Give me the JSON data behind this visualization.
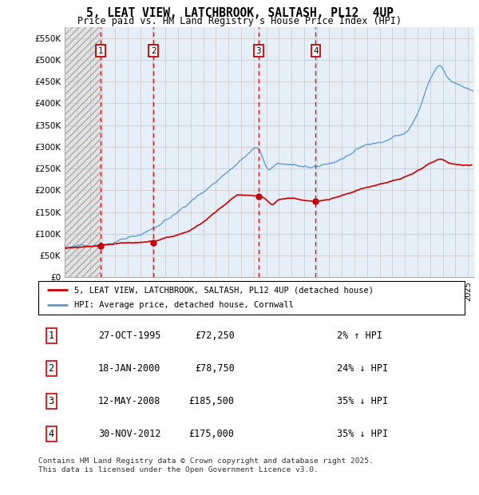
{
  "title": "5, LEAT VIEW, LATCHBROOK, SALTASH, PL12  4UP",
  "subtitle": "Price paid vs. HM Land Registry's House Price Index (HPI)",
  "ylabel_ticks": [
    "£0",
    "£50K",
    "£100K",
    "£150K",
    "£200K",
    "£250K",
    "£300K",
    "£350K",
    "£400K",
    "£450K",
    "£500K",
    "£550K"
  ],
  "ytick_values": [
    0,
    50000,
    100000,
    150000,
    200000,
    250000,
    300000,
    350000,
    400000,
    450000,
    500000,
    550000
  ],
  "ylim": [
    0,
    575000
  ],
  "xlim_start": 1993.0,
  "xlim_end": 2025.5,
  "hpi_color": "#5b9bd5",
  "price_color": "#cc0000",
  "shade_color_pre1995": "#d8d8d8",
  "shade_color_post1995": "#dce9f5",
  "transactions": [
    {
      "num": 1,
      "date_x": 1995.83,
      "price": 72250,
      "label": "1",
      "vline_style": "dashed"
    },
    {
      "num": 2,
      "date_x": 2000.05,
      "price": 78750,
      "label": "2",
      "vline_style": "dashed"
    },
    {
      "num": 3,
      "date_x": 2008.37,
      "price": 185500,
      "label": "3",
      "vline_style": "dashed"
    },
    {
      "num": 4,
      "date_x": 2012.92,
      "price": 175000,
      "label": "4",
      "vline_style": "dashed"
    }
  ],
  "legend_entries": [
    {
      "label": "5, LEAT VIEW, LATCHBROOK, SALTASH, PL12 4UP (detached house)",
      "color": "#cc0000",
      "lw": 2
    },
    {
      "label": "HPI: Average price, detached house, Cornwall",
      "color": "#5b9bd5",
      "lw": 2
    }
  ],
  "table_rows": [
    {
      "num": "1",
      "date": "27-OCT-1995",
      "price": "£72,250",
      "hpi": "2% ↑ HPI"
    },
    {
      "num": "2",
      "date": "18-JAN-2000",
      "price": "£78,750",
      "hpi": "24% ↓ HPI"
    },
    {
      "num": "3",
      "date": "12-MAY-2008",
      "price": "£185,500",
      "hpi": "35% ↓ HPI"
    },
    {
      "num": "4",
      "date": "30-NOV-2012",
      "price": "£175,000",
      "hpi": "35% ↓ HPI"
    }
  ],
  "footnote": "Contains HM Land Registry data © Crown copyright and database right 2025.\nThis data is licensed under the Open Government Licence v3.0.",
  "grid_color": "#cccccc"
}
